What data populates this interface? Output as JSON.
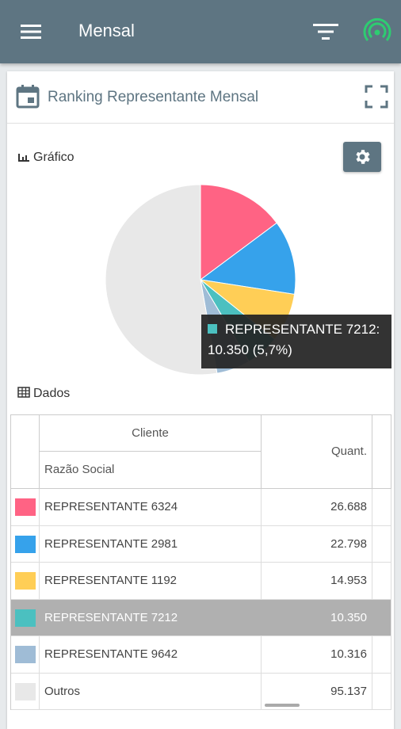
{
  "appbar": {
    "title": "Mensal",
    "icons": [
      "menu-icon",
      "filter-icon",
      "signal-icon"
    ],
    "signal_color": "#2ecc71"
  },
  "card": {
    "title": "Ranking Representante Mensal",
    "chart_section": "Gráfico",
    "data_section": "Dados"
  },
  "chart_data": {
    "type": "pie",
    "categories": [
      "REPRESENTANTE 6324",
      "REPRESENTANTE 2981",
      "REPRESENTANTE 1192",
      "REPRESENTANTE 7212",
      "REPRESENTANTE 9642",
      "Outros"
    ],
    "values": [
      26688,
      22798,
      14953,
      10350,
      10316,
      95137
    ],
    "colors": [
      "#ff6384",
      "#36a2eb",
      "#ffce56",
      "#4bc0c0",
      "#9fbcd6",
      "#e8e8e8"
    ],
    "tooltip": {
      "label": "REPRESENTANTE 7212:",
      "value": "10.350 (5,7%)"
    }
  },
  "table": {
    "header_group": "Cliente",
    "header_name": "Razão Social",
    "header_value": "Quant.",
    "rows": [
      {
        "name": "REPRESENTANTE 6324",
        "value": "26.688",
        "color": "#ff6384"
      },
      {
        "name": "REPRESENTANTE 2981",
        "value": "22.798",
        "color": "#36a2eb"
      },
      {
        "name": "REPRESENTANTE 1192",
        "value": "14.953",
        "color": "#ffce56"
      },
      {
        "name": "REPRESENTANTE 7212",
        "value": "10.350",
        "color": "#4bc0c0"
      },
      {
        "name": "REPRESENTANTE 9642",
        "value": "10.316",
        "color": "#9fbcd6"
      },
      {
        "name": "Outros",
        "value": "95.137",
        "color": "#e8e8e8"
      }
    ]
  }
}
